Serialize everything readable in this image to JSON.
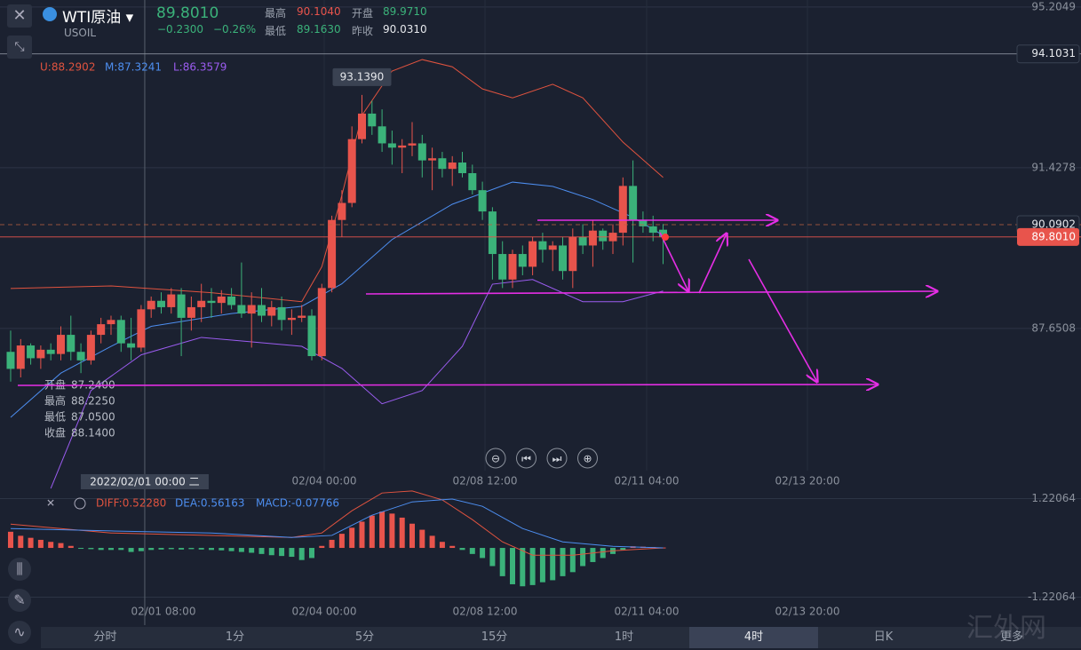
{
  "header": {
    "name": "WTI原油",
    "code": "USOIL",
    "price": "89.8010",
    "change": "−0.2300",
    "change_pct": "−0.26%",
    "high_label": "最高",
    "high": "90.1040",
    "open_label": "开盘",
    "open": "89.9710",
    "low_label": "最低",
    "low": "89.1630",
    "prev_label": "昨收",
    "prev": "90.0310"
  },
  "chart_data": [
    {
      "type": "candlestick",
      "up_color": "#e8544c",
      "down_color": "#3bb27a",
      "open": [
        87.1,
        86.7,
        87.25,
        86.95,
        87.15,
        87.05,
        87.5,
        87.1,
        86.9,
        87.5,
        87.75,
        87.85,
        87.3,
        87.2,
        88.1,
        88.3,
        88.15,
        88.45,
        87.9,
        88.15,
        88.3,
        88.25,
        88.4,
        88.2,
        88.0,
        88.2,
        87.95,
        88.15,
        87.85,
        87.9,
        87.95,
        87.0,
        88.6,
        90.2,
        90.6,
        92.1,
        92.7,
        92.4,
        92.0,
        91.9,
        91.95,
        92.0,
        91.6,
        91.65,
        91.4,
        91.55,
        91.3,
        90.9,
        90.4,
        89.4,
        88.8,
        89.4,
        89.1,
        89.7,
        89.5,
        89.6,
        89.0,
        89.8,
        89.6,
        89.95,
        89.7,
        89.9,
        91.0,
        90.2,
        90.05,
        89.971
      ],
      "high": [
        87.6,
        87.4,
        87.3,
        87.25,
        87.3,
        87.7,
        87.95,
        87.3,
        87.6,
        87.9,
        87.95,
        87.95,
        87.9,
        88.2,
        88.4,
        88.5,
        88.6,
        88.6,
        88.4,
        88.7,
        88.6,
        88.55,
        88.6,
        89.2,
        88.5,
        88.6,
        88.3,
        88.4,
        88.1,
        88.2,
        88.1,
        88.7,
        90.3,
        90.9,
        92.4,
        93.139,
        93.0,
        92.8,
        92.3,
        92.1,
        92.5,
        92.2,
        91.9,
        91.8,
        91.7,
        91.8,
        91.5,
        91.1,
        90.5,
        89.7,
        89.5,
        89.6,
        89.8,
        89.9,
        89.7,
        89.8,
        90.0,
        90.1,
        90.2,
        90.0,
        90.1,
        91.2,
        91.6,
        90.4,
        90.3,
        90.104
      ],
      "low": [
        86.4,
        86.5,
        86.8,
        86.7,
        86.9,
        86.9,
        86.9,
        86.6,
        86.8,
        87.3,
        87.5,
        87.1,
        86.9,
        87.1,
        87.9,
        88.0,
        88.0,
        87.0,
        87.6,
        87.8,
        87.9,
        88.0,
        88.1,
        87.9,
        87.2,
        87.8,
        87.7,
        87.6,
        87.5,
        87.8,
        86.9,
        86.9,
        88.5,
        89.8,
        90.5,
        92.0,
        92.2,
        91.8,
        91.5,
        91.3,
        91.7,
        91.2,
        90.9,
        91.2,
        91.0,
        91.2,
        90.8,
        90.2,
        88.8,
        88.6,
        88.6,
        88.9,
        88.9,
        89.2,
        89.0,
        88.8,
        88.6,
        89.4,
        89.1,
        89.5,
        89.4,
        89.6,
        89.2,
        89.9,
        89.7,
        89.163
      ],
      "close": [
        86.7,
        87.25,
        86.95,
        87.15,
        87.05,
        87.5,
        87.1,
        86.9,
        87.5,
        87.75,
        87.85,
        87.3,
        87.2,
        88.1,
        88.3,
        88.15,
        88.45,
        87.9,
        88.15,
        88.3,
        88.25,
        88.4,
        88.2,
        88.0,
        88.2,
        87.95,
        88.15,
        87.85,
        87.9,
        87.95,
        87.0,
        88.6,
        90.2,
        90.6,
        92.1,
        92.7,
        92.4,
        92.0,
        91.9,
        91.95,
        92.0,
        91.6,
        91.65,
        91.4,
        91.55,
        91.3,
        90.9,
        90.4,
        89.4,
        88.8,
        89.4,
        89.1,
        89.7,
        89.5,
        89.6,
        89.0,
        89.8,
        89.6,
        89.95,
        89.7,
        89.9,
        91.0,
        90.2,
        90.05,
        89.9,
        89.801
      ],
      "max_label": "93.1390",
      "bands": [
        {
          "legend": "U:88.2902",
          "color": "#e0533f",
          "x": [
            0,
            10,
            20,
            29,
            31,
            33,
            35,
            38,
            41,
            44,
            47,
            50,
            54,
            57,
            61,
            65
          ],
          "values": [
            88.59,
            88.65,
            88.49,
            88.28,
            89.1,
            90.78,
            92.66,
            93.7,
            93.97,
            93.8,
            93.28,
            93.07,
            93.39,
            93.07,
            92.03,
            91.2
          ]
        },
        {
          "legend": "M:87.3241",
          "color": "#4d8ef0",
          "x": [
            0,
            5,
            10,
            14,
            22,
            29,
            33,
            38,
            44,
            50,
            54,
            58,
            62,
            65
          ],
          "values": [
            85.56,
            86.6,
            87.23,
            87.7,
            88.0,
            88.17,
            88.7,
            89.74,
            90.57,
            91.09,
            90.99,
            90.68,
            90.26,
            89.84
          ]
        },
        {
          "legend": "L:86.3579",
          "color": "#9b5cf0",
          "x": [
            4,
            8,
            13,
            19,
            29,
            33,
            37,
            41,
            45,
            48,
            52,
            57,
            61,
            65
          ],
          "values": [
            83.89,
            86.19,
            87.03,
            87.44,
            87.23,
            86.71,
            85.88,
            86.19,
            87.23,
            88.69,
            88.8,
            88.28,
            88.28,
            88.53
          ]
        }
      ],
      "ylim": [
        83.87,
        95.37
      ],
      "yticks": [
        95.2049,
        91.4278,
        87.6508
      ],
      "levels": [
        {
          "value": 94.1031,
          "color": "#8a909c"
        },
        {
          "value": 90.0902,
          "color": "#c0623f"
        },
        {
          "value": 89.801,
          "label": "89.8010",
          "color": "#e8544c"
        }
      ],
      "xlim": [
        -1.06,
        99.82
      ],
      "xticks": [
        {
          "value": 31.24,
          "label": "02/04 00:00"
        },
        {
          "value": 47.26,
          "label": "02/08 12:00"
        },
        {
          "value": 63.36,
          "label": "02/11 04:00"
        },
        {
          "value": 79.38,
          "label": "02/13 20:00"
        }
      ],
      "crosshair": {
        "value": 13.36,
        "label": "2022/02/01 00:00 二"
      },
      "info": [
        [
          "开盘",
          "87.2400"
        ],
        [
          "最高",
          "88.2250"
        ],
        [
          "最低",
          "87.0500"
        ],
        [
          "收盘",
          "88.1400"
        ]
      ]
    },
    {
      "type": "bar",
      "up_color": "#e8544c",
      "down_color": "#3bb27a",
      "values": [
        0.4,
        0.3,
        0.25,
        0.2,
        0.15,
        0.12,
        0.05,
        -0.02,
        -0.03,
        -0.05,
        -0.05,
        -0.05,
        -0.1,
        -0.08,
        -0.05,
        -0.04,
        -0.03,
        -0.04,
        -0.03,
        -0.04,
        -0.05,
        -0.06,
        -0.08,
        -0.1,
        -0.12,
        -0.15,
        -0.18,
        -0.2,
        -0.22,
        -0.3,
        -0.25,
        0.05,
        0.2,
        0.35,
        0.5,
        0.65,
        0.8,
        0.9,
        0.85,
        0.75,
        0.6,
        0.45,
        0.3,
        0.15,
        0.05,
        -0.05,
        -0.15,
        -0.25,
        -0.45,
        -0.7,
        -0.9,
        -0.95,
        -0.92,
        -0.85,
        -0.8,
        -0.7,
        -0.6,
        -0.45,
        -0.35,
        -0.25,
        -0.15,
        -0.05,
        0.04,
        0.03,
        0.02,
        0.01
      ],
      "lines": [
        {
          "legend": "DIFF:0.52280",
          "color": "#e0533f",
          "x": [
            0,
            10,
            20,
            28,
            31,
            34,
            37,
            40,
            43,
            46,
            49,
            52,
            56,
            60,
            65
          ],
          "values": [
            0.59,
            0.37,
            0.31,
            0.26,
            0.37,
            0.92,
            1.36,
            1.41,
            1.19,
            0.7,
            0.15,
            -0.18,
            -0.18,
            -0.07,
            0
          ]
        },
        {
          "legend": "DEA:0.56163",
          "color": "#4d8ef0",
          "x": [
            0,
            10,
            20,
            28,
            32,
            36,
            40,
            44,
            47,
            51,
            55,
            60,
            65
          ],
          "values": [
            0.48,
            0.42,
            0.37,
            0.26,
            0.31,
            0.81,
            1.14,
            1.21,
            1.03,
            0.48,
            0.15,
            0.04,
            0
          ]
        }
      ],
      "macd_legend": "MACD:-0.07766",
      "ylim": [
        -1.89,
        1.43
      ],
      "yticks": [
        1.22064,
        -1.22064
      ],
      "xlim": [
        -1.06,
        99.82
      ],
      "xticks": [
        {
          "value": 15.22,
          "label": "02/01 08:00"
        },
        {
          "value": 31.24,
          "label": "02/04 00:00"
        },
        {
          "value": 47.26,
          "label": "02/08 12:00"
        },
        {
          "value": 63.36,
          "label": "02/11 04:00"
        },
        {
          "value": 79.38,
          "label": "02/13 20:00"
        }
      ]
    }
  ],
  "toolbar": {
    "tabs": [
      "分时",
      "1分",
      "5分",
      "15分",
      "1时",
      "4时",
      "日K"
    ],
    "active": 5,
    "more": "更多"
  },
  "watermark": "汇外网"
}
